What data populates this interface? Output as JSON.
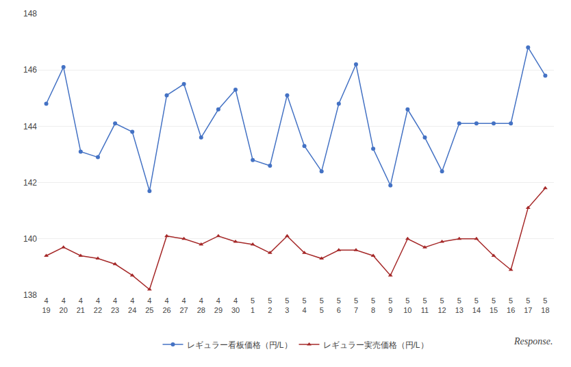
{
  "chart_data": {
    "type": "line",
    "categories": [
      [
        "4",
        "19"
      ],
      [
        "4",
        "20"
      ],
      [
        "4",
        "21"
      ],
      [
        "4",
        "22"
      ],
      [
        "4",
        "23"
      ],
      [
        "4",
        "24"
      ],
      [
        "4",
        "25"
      ],
      [
        "4",
        "26"
      ],
      [
        "4",
        "27"
      ],
      [
        "4",
        "28"
      ],
      [
        "4",
        "29"
      ],
      [
        "4",
        "30"
      ],
      [
        "5",
        "1"
      ],
      [
        "5",
        "2"
      ],
      [
        "5",
        "3"
      ],
      [
        "5",
        "4"
      ],
      [
        "5",
        "5"
      ],
      [
        "5",
        "6"
      ],
      [
        "5",
        "7"
      ],
      [
        "5",
        "8"
      ],
      [
        "5",
        "9"
      ],
      [
        "5",
        "10"
      ],
      [
        "5",
        "11"
      ],
      [
        "5",
        "12"
      ],
      [
        "5",
        "13"
      ],
      [
        "5",
        "14"
      ],
      [
        "5",
        "15"
      ],
      [
        "5",
        "16"
      ],
      [
        "5",
        "17"
      ],
      [
        "5",
        "18"
      ]
    ],
    "series": [
      {
        "name": "レギュラー看板価格（円/L）",
        "color": "#4472C4",
        "marker": "circle",
        "values": [
          144.8,
          146.1,
          143.1,
          142.9,
          144.1,
          143.8,
          141.7,
          145.1,
          145.5,
          143.6,
          144.6,
          145.3,
          142.8,
          142.6,
          145.1,
          143.3,
          142.4,
          144.8,
          146.2,
          143.2,
          141.9,
          144.6,
          143.6,
          142.4,
          144.1,
          144.1,
          144.1,
          144.1,
          146.8,
          145.8
        ]
      },
      {
        "name": "レギュラー実売価格（円/L）",
        "color": "#A52828",
        "marker": "triangle-up",
        "values": [
          139.4,
          139.7,
          139.4,
          139.3,
          139.1,
          138.7,
          138.2,
          140.1,
          140.0,
          139.8,
          140.1,
          139.9,
          139.8,
          139.5,
          140.1,
          139.5,
          139.3,
          139.6,
          139.6,
          139.4,
          138.7,
          140.0,
          139.7,
          139.9,
          140.0,
          140.0,
          139.4,
          138.9,
          141.1,
          141.8
        ]
      }
    ],
    "ylim": [
      138,
      148
    ],
    "yticks": [
      138,
      140,
      142,
      144,
      146,
      148
    ],
    "grid": true,
    "legend": "bottom",
    "annotations": [
      "Response."
    ]
  }
}
